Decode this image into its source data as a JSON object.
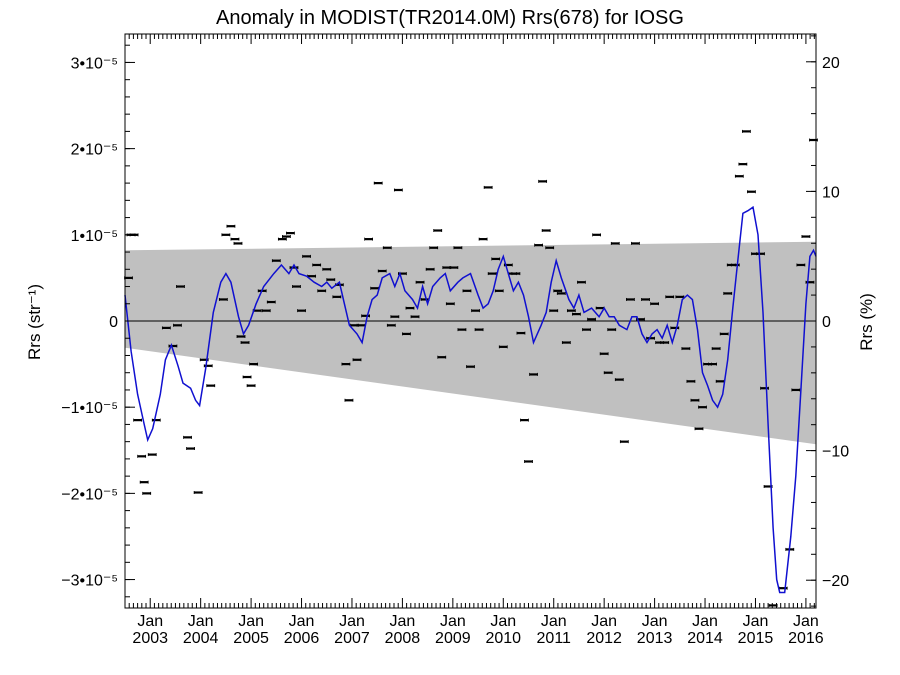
{
  "chart_data": {
    "type": "scatter",
    "title": "Anomaly in MODIST(TR2014.0M) Rrs(678) for IOSG",
    "ylabel_left": "Rrs (str⁻¹)",
    "ylabel_right": "Rrs (%)",
    "xlim": [
      2002.5,
      2016.2
    ],
    "ylim": [
      -3.33e-05,
      3.33e-05
    ],
    "y_ticks_left": [
      {
        "value": 3e-05,
        "label": "3•10⁻⁵"
      },
      {
        "value": 2e-05,
        "label": "2•10⁻⁵"
      },
      {
        "value": 1e-05,
        "label": "1•10⁻⁵"
      },
      {
        "value": 0,
        "label": "0"
      },
      {
        "value": -1e-05,
        "label": "−1•10⁻⁵"
      },
      {
        "value": -2e-05,
        "label": "−2•10⁻⁵"
      },
      {
        "value": -3e-05,
        "label": "−3•10⁻⁵"
      }
    ],
    "y_ticks_right": [
      {
        "value": 20,
        "label": "20"
      },
      {
        "value": 10,
        "label": "10"
      },
      {
        "value": 0,
        "label": "0"
      },
      {
        "value": -10,
        "label": "−10"
      },
      {
        "value": -20,
        "label": "−20"
      }
    ],
    "right_axis_scale_pct_per_unit": 665000,
    "x_ticks": [
      {
        "value": 2003,
        "month": "Jan",
        "year": "2003"
      },
      {
        "value": 2004,
        "month": "Jan",
        "year": "2004"
      },
      {
        "value": 2005,
        "month": "Jan",
        "year": "2005"
      },
      {
        "value": 2006,
        "month": "Jan",
        "year": "2006"
      },
      {
        "value": 2007,
        "month": "Jan",
        "year": "2007"
      },
      {
        "value": 2008,
        "month": "Jan",
        "year": "2008"
      },
      {
        "value": 2009,
        "month": "Jan",
        "year": "2009"
      },
      {
        "value": 2010,
        "month": "Jan",
        "year": "2010"
      },
      {
        "value": 2011,
        "month": "Jan",
        "year": "2011"
      },
      {
        "value": 2012,
        "month": "Jan",
        "year": "2012"
      },
      {
        "value": 2013,
        "month": "Jan",
        "year": "2013"
      },
      {
        "value": 2014,
        "month": "Jan",
        "year": "2014"
      },
      {
        "value": 2015,
        "month": "Jan",
        "year": "2015"
      },
      {
        "value": 2016,
        "month": "Jan",
        "year": "2016"
      }
    ],
    "band": {
      "color": "#c0c0c0",
      "upper": [
        [
          2002.5,
          8.2e-06
        ],
        [
          2016.2,
          9.2e-06
        ]
      ],
      "lower": [
        [
          2002.5,
          -3.1e-06
        ],
        [
          2016.2,
          -1.43e-05
        ]
      ]
    },
    "smooth_series": {
      "color": "#1010d0",
      "points": [
        [
          2002.5,
          3e-06
        ],
        [
          2002.62,
          -3.5e-06
        ],
        [
          2002.75,
          -8.5e-06
        ],
        [
          2002.88,
          -1.2e-05
        ],
        [
          2002.95,
          -1.38e-05
        ],
        [
          2003.05,
          -1.25e-05
        ],
        [
          2003.2,
          -8.5e-06
        ],
        [
          2003.3,
          -4.5e-06
        ],
        [
          2003.42,
          -2.8e-06
        ],
        [
          2003.55,
          -5.2e-06
        ],
        [
          2003.65,
          -7.2e-06
        ],
        [
          2003.8,
          -7.8e-06
        ],
        [
          2003.9,
          -9.2e-06
        ],
        [
          2003.98,
          -9.8e-06
        ],
        [
          2004.1,
          -5.5e-06
        ],
        [
          2004.25,
          1e-06
        ],
        [
          2004.4,
          4.5e-06
        ],
        [
          2004.5,
          5.5e-06
        ],
        [
          2004.6,
          4.5e-06
        ],
        [
          2004.75,
          5e-07
        ],
        [
          2004.85,
          -1.5e-06
        ],
        [
          2004.95,
          -5e-07
        ],
        [
          2005.1,
          2e-06
        ],
        [
          2005.25,
          4e-06
        ],
        [
          2005.45,
          5.5e-06
        ],
        [
          2005.6,
          6.5e-06
        ],
        [
          2005.75,
          5.5e-06
        ],
        [
          2005.85,
          6.5e-06
        ],
        [
          2005.95,
          5.5e-06
        ],
        [
          2006.1,
          5.2e-06
        ],
        [
          2006.25,
          4.5e-06
        ],
        [
          2006.4,
          4e-06
        ],
        [
          2006.5,
          4.5e-06
        ],
        [
          2006.6,
          3.8e-06
        ],
        [
          2006.75,
          4.5e-06
        ],
        [
          2006.85,
          2e-06
        ],
        [
          2006.95,
          -5e-07
        ],
        [
          2007.1,
          -1.5e-06
        ],
        [
          2007.2,
          -2.5e-06
        ],
        [
          2007.3,
          5e-07
        ],
        [
          2007.4,
          2.5e-06
        ],
        [
          2007.5,
          3e-06
        ],
        [
          2007.6,
          5e-06
        ],
        [
          2007.75,
          5.5e-06
        ],
        [
          2007.85,
          4e-06
        ],
        [
          2007.95,
          5.5e-06
        ],
        [
          2008.05,
          3.5e-06
        ],
        [
          2008.2,
          2.5e-06
        ],
        [
          2008.3,
          1.5e-06
        ],
        [
          2008.4,
          4e-06
        ],
        [
          2008.5,
          2e-06
        ],
        [
          2008.6,
          4e-06
        ],
        [
          2008.75,
          5e-06
        ],
        [
          2008.85,
          5.5e-06
        ],
        [
          2008.95,
          3.5e-06
        ],
        [
          2009.1,
          4.5e-06
        ],
        [
          2009.2,
          5e-06
        ],
        [
          2009.35,
          5.5e-06
        ],
        [
          2009.5,
          3e-06
        ],
        [
          2009.6,
          1.5e-06
        ],
        [
          2009.7,
          2e-06
        ],
        [
          2009.8,
          3.5e-06
        ],
        [
          2009.9,
          6e-06
        ],
        [
          2010.0,
          7.5e-06
        ],
        [
          2010.1,
          5.5e-06
        ],
        [
          2010.2,
          3.5e-06
        ],
        [
          2010.3,
          4.5e-06
        ],
        [
          2010.4,
          3e-06
        ],
        [
          2010.5,
          5e-07
        ],
        [
          2010.6,
          -2.5e-06
        ],
        [
          2010.75,
          -5e-07
        ],
        [
          2010.85,
          1e-06
        ],
        [
          2010.95,
          4.5e-06
        ],
        [
          2011.05,
          7e-06
        ],
        [
          2011.15,
          5e-06
        ],
        [
          2011.3,
          2.5e-06
        ],
        [
          2011.4,
          1.5e-06
        ],
        [
          2011.5,
          3e-06
        ],
        [
          2011.6,
          1e-06
        ],
        [
          2011.75,
          1.5e-06
        ],
        [
          2011.9,
          5e-07
        ],
        [
          2012.0,
          1.5e-06
        ],
        [
          2012.1,
          5e-07
        ],
        [
          2012.2,
          5e-07
        ],
        [
          2012.3,
          -5e-07
        ],
        [
          2012.45,
          -1e-06
        ],
        [
          2012.55,
          5e-07
        ],
        [
          2012.65,
          5e-07
        ],
        [
          2012.75,
          -1.5e-06
        ],
        [
          2012.85,
          -2.5e-06
        ],
        [
          2012.95,
          -1.5e-06
        ],
        [
          2013.05,
          -1e-06
        ],
        [
          2013.15,
          -2e-06
        ],
        [
          2013.25,
          -5e-07
        ],
        [
          2013.35,
          -2.5e-06
        ],
        [
          2013.45,
          -5e-07
        ],
        [
          2013.55,
          2.5e-06
        ],
        [
          2013.65,
          3e-06
        ],
        [
          2013.75,
          2.5e-06
        ],
        [
          2013.85,
          -1e-06
        ],
        [
          2013.95,
          -6e-06
        ],
        [
          2014.05,
          -7.5e-06
        ],
        [
          2014.15,
          -9.2e-06
        ],
        [
          2014.25,
          -1e-05
        ],
        [
          2014.35,
          -8.5e-06
        ],
        [
          2014.45,
          -4.5e-06
        ],
        [
          2014.55,
          1.5e-06
        ],
        [
          2014.65,
          7e-06
        ],
        [
          2014.75,
          1.25e-05
        ],
        [
          2014.85,
          1.28e-05
        ],
        [
          2014.95,
          1.32e-05
        ],
        [
          2015.05,
          1e-05
        ],
        [
          2015.15,
          1e-06
        ],
        [
          2015.25,
          -1.2e-05
        ],
        [
          2015.35,
          -2.4e-05
        ],
        [
          2015.42,
          -3e-05
        ],
        [
          2015.48,
          -3.15e-05
        ],
        [
          2015.58,
          -3.15e-05
        ],
        [
          2015.7,
          -2.5e-05
        ],
        [
          2015.8,
          -1.8e-05
        ],
        [
          2015.9,
          -8e-06
        ],
        [
          2016.0,
          2e-06
        ],
        [
          2016.08,
          7.5e-06
        ],
        [
          2016.15,
          8.2e-06
        ],
        [
          2016.2,
          7.5e-06
        ]
      ]
    },
    "points": [
      [
        2002.57,
        5e-06
      ],
      [
        2002.62,
        1e-05
      ],
      [
        2002.68,
        1e-05
      ],
      [
        2002.75,
        -1.15e-05
      ],
      [
        2002.83,
        -1.57e-05
      ],
      [
        2002.88,
        -1.87e-05
      ],
      [
        2002.93,
        -2e-05
      ],
      [
        2003.04,
        -1.55e-05
      ],
      [
        2003.12,
        -1.15e-05
      ],
      [
        2003.32,
        -8e-07
      ],
      [
        2003.45,
        -2.9e-06
      ],
      [
        2003.54,
        -5e-07
      ],
      [
        2003.6,
        4e-06
      ],
      [
        2003.74,
        -1.35e-05
      ],
      [
        2003.8,
        -1.48e-05
      ],
      [
        2003.95,
        -1.99e-05
      ],
      [
        2004.07,
        -4.5e-06
      ],
      [
        2004.15,
        -5.2e-06
      ],
      [
        2004.2,
        -7.5e-06
      ],
      [
        2004.45,
        2.5e-06
      ],
      [
        2004.5,
        1e-05
      ],
      [
        2004.6,
        1.1e-05
      ],
      [
        2004.68,
        9.5e-06
      ],
      [
        2004.74,
        9e-06
      ],
      [
        2004.8,
        -1.8e-06
      ],
      [
        2004.88,
        -2.5e-06
      ],
      [
        2004.92,
        -6.5e-06
      ],
      [
        2005.0,
        -7.5e-06
      ],
      [
        2005.05,
        -5e-06
      ],
      [
        2005.12,
        1.2e-06
      ],
      [
        2005.22,
        3.5e-06
      ],
      [
        2005.3,
        1.2e-06
      ],
      [
        2005.4,
        2.2e-06
      ],
      [
        2005.5,
        7e-06
      ],
      [
        2005.62,
        9.5e-06
      ],
      [
        2005.7,
        9.8e-06
      ],
      [
        2005.78,
        1.02e-05
      ],
      [
        2005.85,
        6.2e-06
      ],
      [
        2005.9,
        4e-06
      ],
      [
        2006.0,
        1.2e-06
      ],
      [
        2006.1,
        7.5e-06
      ],
      [
        2006.2,
        5.2e-06
      ],
      [
        2006.3,
        6.5e-06
      ],
      [
        2006.4,
        3.5e-06
      ],
      [
        2006.5,
        6e-06
      ],
      [
        2006.58,
        4.8e-06
      ],
      [
        2006.7,
        2.8e-06
      ],
      [
        2006.75,
        4.2e-06
      ],
      [
        2006.88,
        -5e-06
      ],
      [
        2006.94,
        -9.2e-06
      ],
      [
        2007.05,
        -5e-07
      ],
      [
        2007.1,
        -4.5e-06
      ],
      [
        2007.18,
        -5e-07
      ],
      [
        2007.27,
        6e-07
      ],
      [
        2007.33,
        9.5e-06
      ],
      [
        2007.45,
        3.8e-06
      ],
      [
        2007.52,
        1.6e-05
      ],
      [
        2007.6,
        5.8e-06
      ],
      [
        2007.7,
        8.5e-06
      ],
      [
        2007.78,
        -5e-07
      ],
      [
        2007.85,
        5e-07
      ],
      [
        2007.92,
        1.52e-05
      ],
      [
        2008.0,
        5.5e-06
      ],
      [
        2008.08,
        -1.5e-06
      ],
      [
        2008.15,
        1.5e-06
      ],
      [
        2008.25,
        5e-07
      ],
      [
        2008.35,
        4.5e-06
      ],
      [
        2008.45,
        2.5e-06
      ],
      [
        2008.55,
        6e-06
      ],
      [
        2008.62,
        8.5e-06
      ],
      [
        2008.7,
        1.05e-05
      ],
      [
        2008.78,
        -4.2e-06
      ],
      [
        2008.88,
        6.2e-06
      ],
      [
        2008.95,
        2e-06
      ],
      [
        2009.02,
        6.2e-06
      ],
      [
        2009.1,
        8.5e-06
      ],
      [
        2009.18,
        -1e-06
      ],
      [
        2009.28,
        3.5e-06
      ],
      [
        2009.35,
        -5.3e-06
      ],
      [
        2009.45,
        1.2e-06
      ],
      [
        2009.52,
        -1e-06
      ],
      [
        2009.6,
        9.5e-06
      ],
      [
        2009.7,
        1.55e-05
      ],
      [
        2009.78,
        5.5e-06
      ],
      [
        2009.85,
        7.2e-06
      ],
      [
        2009.92,
        3.5e-06
      ],
      [
        2010.0,
        -3e-06
      ],
      [
        2010.1,
        6.5e-06
      ],
      [
        2010.18,
        5.5e-06
      ],
      [
        2010.25,
        5.5e-06
      ],
      [
        2010.35,
        -1.4e-06
      ],
      [
        2010.42,
        -1.15e-05
      ],
      [
        2010.5,
        -1.63e-05
      ],
      [
        2010.6,
        -6.2e-06
      ],
      [
        2010.7,
        8.8e-06
      ],
      [
        2010.78,
        1.62e-05
      ],
      [
        2010.85,
        1.05e-05
      ],
      [
        2010.92,
        8.5e-06
      ],
      [
        2011.0,
        1.2e-06
      ],
      [
        2011.08,
        3.5e-06
      ],
      [
        2011.15,
        3.2e-06
      ],
      [
        2011.25,
        -2.5e-06
      ],
      [
        2011.35,
        1.2e-06
      ],
      [
        2011.45,
        8e-07
      ],
      [
        2011.55,
        4.5e-06
      ],
      [
        2011.65,
        -1e-06
      ],
      [
        2011.75,
        2e-07
      ],
      [
        2011.85,
        1e-05
      ],
      [
        2011.92,
        1.5e-06
      ],
      [
        2012.0,
        -3.8e-06
      ],
      [
        2012.08,
        -6e-06
      ],
      [
        2012.15,
        -1e-06
      ],
      [
        2012.22,
        9e-06
      ],
      [
        2012.3,
        -6.8e-06
      ],
      [
        2012.4,
        -1.4e-05
      ],
      [
        2012.52,
        2.5e-06
      ],
      [
        2012.62,
        9e-06
      ],
      [
        2012.72,
        2e-07
      ],
      [
        2012.82,
        2.5e-06
      ],
      [
        2012.92,
        -2e-06
      ],
      [
        2013.0,
        2e-06
      ],
      [
        2013.1,
        -2.5e-06
      ],
      [
        2013.2,
        -2.5e-06
      ],
      [
        2013.3,
        2.8e-06
      ],
      [
        2013.4,
        -8e-07
      ],
      [
        2013.5,
        2.8e-06
      ],
      [
        2013.62,
        -3.2e-06
      ],
      [
        2013.72,
        -7e-06
      ],
      [
        2013.8,
        -9.2e-06
      ],
      [
        2013.88,
        -1.25e-05
      ],
      [
        2013.95,
        -1e-05
      ],
      [
        2014.05,
        -5e-06
      ],
      [
        2014.15,
        -5e-06
      ],
      [
        2014.22,
        -3.2e-06
      ],
      [
        2014.3,
        -7e-06
      ],
      [
        2014.38,
        -1.5e-06
      ],
      [
        2014.45,
        3.2e-06
      ],
      [
        2014.52,
        6.5e-06
      ],
      [
        2014.6,
        6.5e-06
      ],
      [
        2014.68,
        1.68e-05
      ],
      [
        2014.75,
        1.82e-05
      ],
      [
        2014.82,
        2.2e-05
      ],
      [
        2014.92,
        1.5e-05
      ],
      [
        2015.0,
        7.8e-06
      ],
      [
        2015.1,
        7.8e-06
      ],
      [
        2015.18,
        -7.8e-06
      ],
      [
        2015.25,
        -1.92e-05
      ],
      [
        2015.35,
        -3.3e-05
      ],
      [
        2015.55,
        -3.1e-05
      ],
      [
        2015.68,
        -2.65e-05
      ],
      [
        2015.8,
        -8e-06
      ],
      [
        2015.9,
        6.5e-06
      ],
      [
        2016.0,
        9.8e-06
      ],
      [
        2016.08,
        4.5e-06
      ],
      [
        2016.15,
        2.1e-05
      ]
    ]
  }
}
